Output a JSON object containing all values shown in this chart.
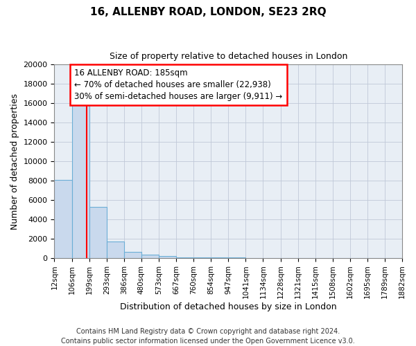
{
  "title": "16, ALLENBY ROAD, LONDON, SE23 2RQ",
  "subtitle": "Size of property relative to detached houses in London",
  "xlabel": "Distribution of detached houses by size in London",
  "ylabel": "Number of detached properties",
  "footer_line1": "Contains HM Land Registry data © Crown copyright and database right 2024.",
  "footer_line2": "Contains public sector information licensed under the Open Government Licence v3.0.",
  "annotation_line1": "16 ALLENBY ROAD: 185sqm",
  "annotation_line2": "← 70% of detached houses are smaller (22,938)",
  "annotation_line3": "30% of semi-detached houses are larger (9,911) →",
  "bar_edges": [
    12,
    106,
    199,
    293,
    386,
    480,
    573,
    667,
    760,
    854,
    947,
    1041,
    1134,
    1228,
    1321,
    1415,
    1508,
    1602,
    1695,
    1789,
    1882
  ],
  "bar_heights": [
    8100,
    16700,
    5300,
    1750,
    650,
    350,
    200,
    100,
    70,
    50,
    40,
    30,
    20,
    15,
    10,
    8,
    5,
    4,
    3,
    2
  ],
  "bar_color": "#c9d9ed",
  "bar_edge_color": "#6baed6",
  "property_line_x": 185,
  "property_line_color": "red",
  "background_color": "#ffffff",
  "axes_bg_color": "#e8eef5",
  "grid_color": "#c0c8d8",
  "ylim": [
    0,
    20000
  ],
  "yticks": [
    0,
    2000,
    4000,
    6000,
    8000,
    10000,
    12000,
    14000,
    16000,
    18000,
    20000
  ],
  "tick_labels": [
    "12sqm",
    "106sqm",
    "199sqm",
    "293sqm",
    "386sqm",
    "480sqm",
    "573sqm",
    "667sqm",
    "760sqm",
    "854sqm",
    "947sqm",
    "1041sqm",
    "1134sqm",
    "1228sqm",
    "1321sqm",
    "1415sqm",
    "1508sqm",
    "1602sqm",
    "1695sqm",
    "1789sqm",
    "1882sqm"
  ],
  "title_fontsize": 11,
  "subtitle_fontsize": 9,
  "xlabel_fontsize": 9,
  "ylabel_fontsize": 9,
  "tick_fontsize": 7.5,
  "ytick_fontsize": 8,
  "footer_fontsize": 7,
  "annot_fontsize": 8.5
}
